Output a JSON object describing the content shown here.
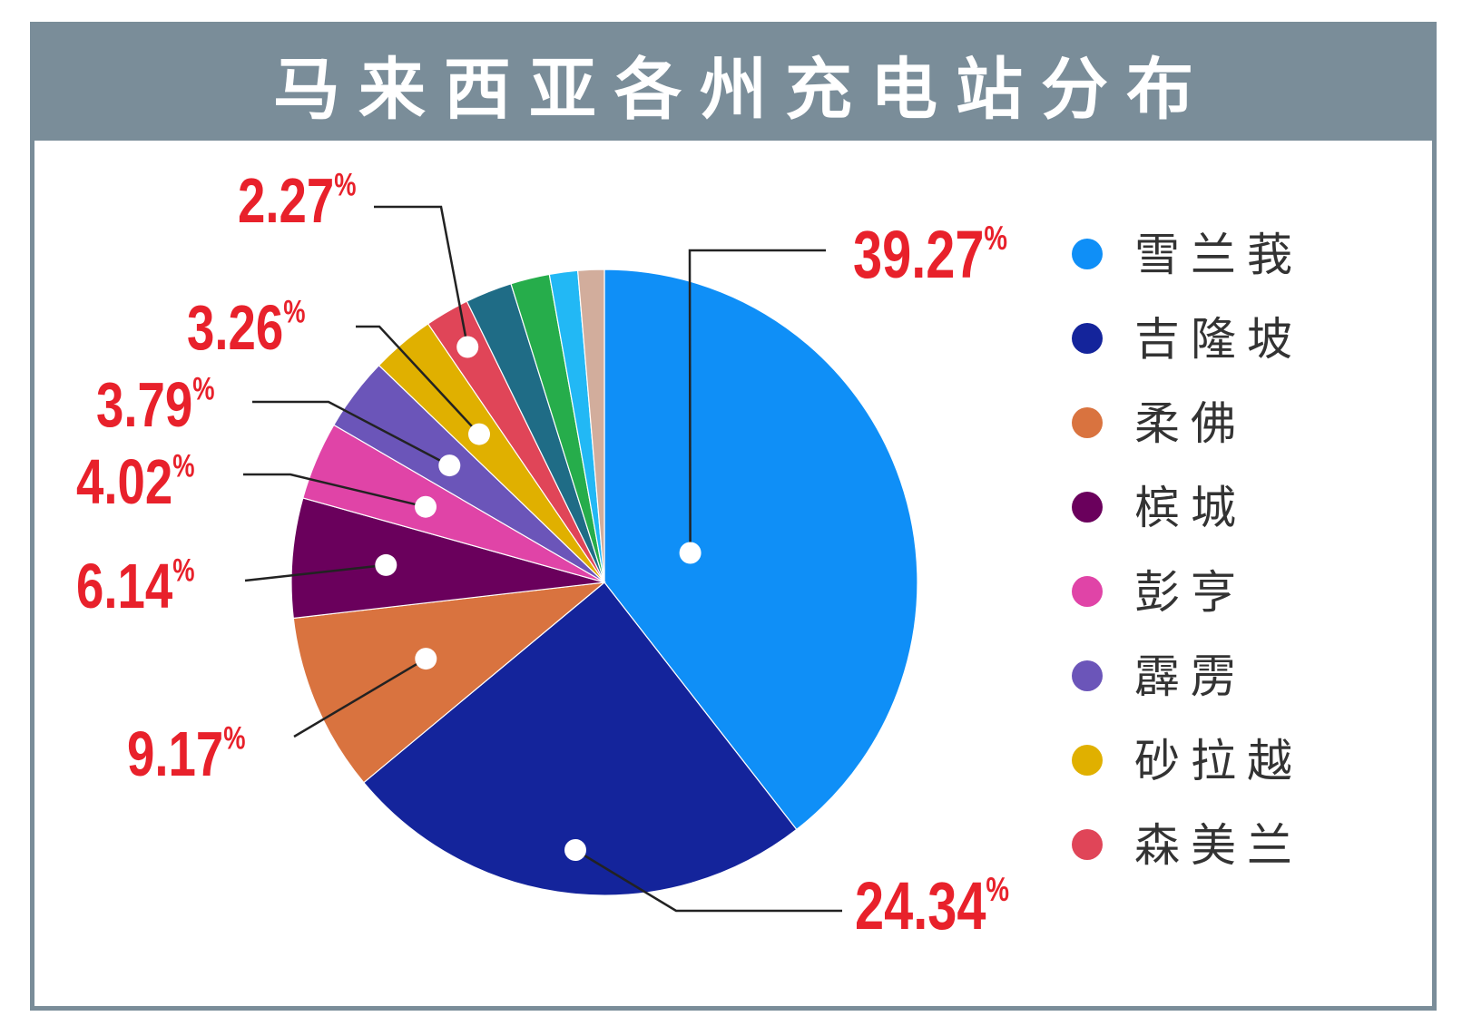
{
  "title": "马来西亚各州充电站分布",
  "chart_data": {
    "type": "pie",
    "title": "马来西亚各州充电站分布",
    "slices": [
      {
        "name": "雪兰莪",
        "value": 39.27,
        "label": "39.27",
        "color": "#0f8ff7"
      },
      {
        "name": "吉隆坡",
        "value": 24.34,
        "label": "24.34",
        "color": "#14249b"
      },
      {
        "name": "柔佛",
        "value": 9.17,
        "label": "9.17",
        "color": "#d9733f"
      },
      {
        "name": "槟城",
        "value": 6.14,
        "label": "6.14",
        "color": "#6a005c"
      },
      {
        "name": "彭亨",
        "value": 4.02,
        "label": "4.02",
        "color": "#e044a7"
      },
      {
        "name": "霹雳",
        "value": 3.79,
        "label": "3.79",
        "color": "#6b55b9"
      },
      {
        "name": "砂拉越",
        "value": 3.26,
        "label": "3.26",
        "color": "#e0b000"
      },
      {
        "name": "森美兰",
        "value": 2.27,
        "label": "2.27",
        "color": "#e04558"
      },
      {
        "name": "",
        "value": 2.4,
        "label": "",
        "color": "#1f6c86"
      },
      {
        "name": "",
        "value": 2.0,
        "label": "",
        "color": "#26ad4b"
      },
      {
        "name": "",
        "value": 1.45,
        "label": "",
        "color": "#22b8f5"
      },
      {
        "name": "",
        "value": 1.35,
        "label": "",
        "color": "#d2ad9c"
      }
    ],
    "percent_symbol": "%",
    "legend": [
      "雪兰莪",
      "吉隆坡",
      "柔佛",
      "槟城",
      "彭亨",
      "霹雳",
      "砂拉越",
      "森美兰"
    ],
    "legend_position": "right",
    "label_color": "#e8212b",
    "leader_color": "#222222"
  }
}
